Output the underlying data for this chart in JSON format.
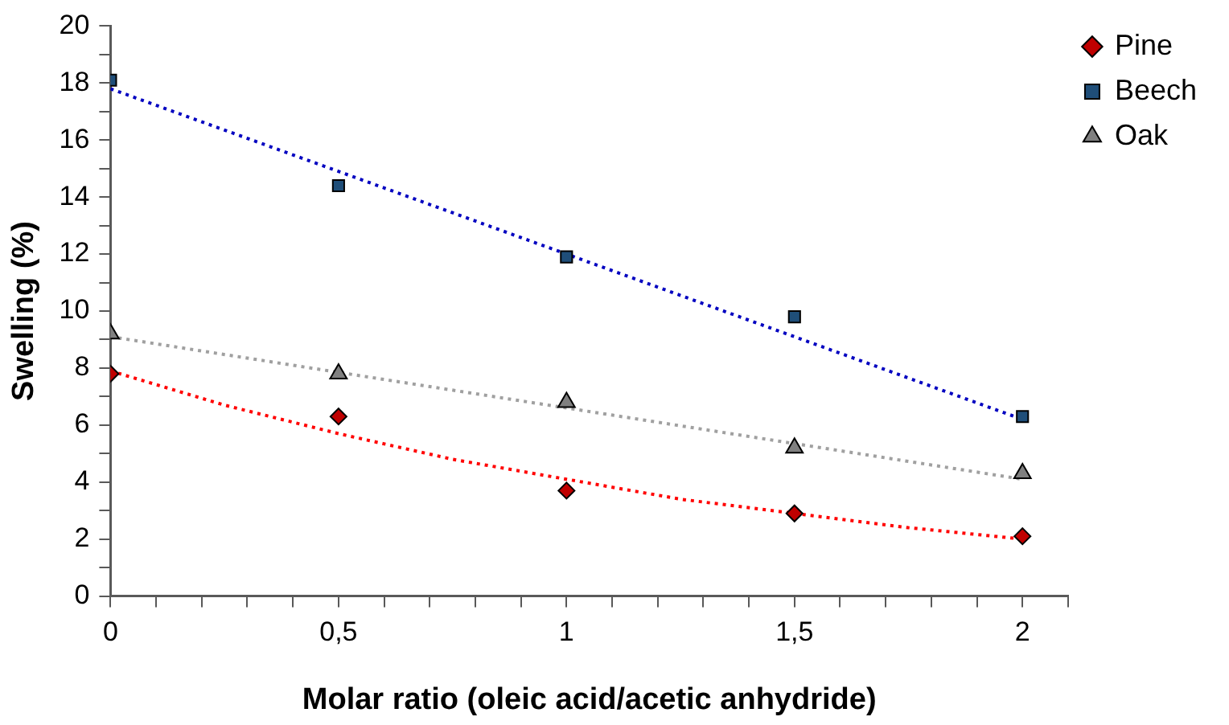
{
  "chart_data": {
    "type": "scatter",
    "xlabel": "Molar ratio (oleic acid/acetic anhydride)",
    "ylabel": "Swelling (%)",
    "xlim": [
      0,
      2.1
    ],
    "xticks": [
      0,
      {
        "value": 0.1,
        "label": null
      },
      {
        "value": 0.2,
        "label": null
      },
      {
        "value": 0.3,
        "label": null
      },
      {
        "value": 0.4,
        "label": null
      },
      {
        "value": 0.5,
        "label": "0,5"
      },
      {
        "value": 0.6,
        "label": null
      },
      {
        "value": 0.7,
        "label": null
      },
      {
        "value": 0.8,
        "label": null
      },
      {
        "value": 0.9,
        "label": null
      },
      1,
      {
        "value": 1.1,
        "label": null
      },
      {
        "value": 1.2,
        "label": null
      },
      {
        "value": 1.3,
        "label": null
      },
      {
        "value": 1.4,
        "label": null
      },
      {
        "value": 1.5,
        "label": "1,5"
      },
      {
        "value": 1.6,
        "label": null
      },
      {
        "value": 1.7,
        "label": null
      },
      {
        "value": 1.8,
        "label": null
      },
      {
        "value": 1.9,
        "label": null
      },
      2,
      {
        "value": 2.1,
        "label": null
      }
    ],
    "ylim": [
      0,
      20
    ],
    "yticks": [
      0,
      {
        "value": 1,
        "label": null
      },
      2,
      {
        "value": 3,
        "label": null
      },
      4,
      {
        "value": 5,
        "label": null
      },
      6,
      {
        "value": 7,
        "label": null
      },
      8,
      {
        "value": 9,
        "label": null
      },
      10,
      {
        "value": 11,
        "label": null
      },
      12,
      {
        "value": 13,
        "label": null
      },
      14,
      {
        "value": 15,
        "label": null
      },
      16,
      {
        "value": 17,
        "label": null
      },
      18,
      {
        "value": 19,
        "label": null
      },
      20
    ],
    "grid": false,
    "legend": "top right",
    "series": [
      {
        "name": "Pine",
        "color": "#c00000",
        "marker": "diamond",
        "x": [
          0,
          0.5,
          1,
          1.5,
          2
        ],
        "values": [
          7.8,
          6.3,
          3.7,
          2.9,
          2.1
        ]
      },
      {
        "name": "Beech",
        "color": "#1f4e79",
        "marker": "square",
        "x": [
          0,
          0.5,
          1,
          1.5,
          2
        ],
        "values": [
          18.1,
          14.4,
          11.9,
          9.8,
          6.3
        ]
      },
      {
        "name": "Oak",
        "color": "#808080",
        "marker": "triangle",
        "x": [
          0,
          0.5,
          1,
          1.5,
          2
        ],
        "values": [
          9.2,
          7.8,
          6.8,
          5.2,
          4.3
        ]
      },
      {
        "type": "line",
        "color": "#ff0000",
        "marker": "none",
        "line_style": "dotted",
        "x": [
          0,
          0.25,
          0.5,
          0.75,
          1,
          1.25,
          1.5,
          1.75,
          2
        ],
        "values": [
          7.9,
          6.7,
          5.7,
          4.8,
          4.1,
          3.4,
          2.9,
          2.4,
          2.0
        ]
      },
      {
        "type": "line",
        "color": "#0000c0",
        "marker": "none",
        "line_style": "dotted",
        "x": [
          0,
          2
        ],
        "values": [
          17.8,
          6.2
        ]
      },
      {
        "type": "line",
        "color": "#a0a0a0",
        "marker": "none",
        "line_style": "dotted",
        "x": [
          0,
          2
        ],
        "values": [
          9.1,
          4.1
        ]
      }
    ]
  }
}
